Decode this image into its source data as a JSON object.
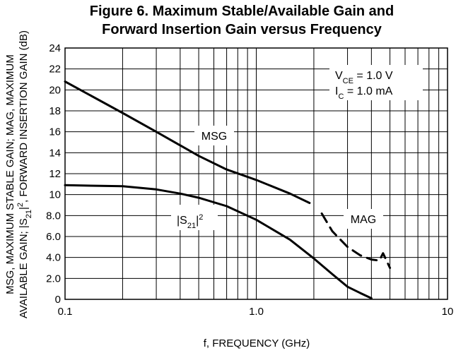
{
  "chart_data": {
    "type": "line",
    "title": "Figure 6. Maximum Stable/Available Gain and Forward Insertion Gain versus Frequency",
    "title_lines": [
      "Figure 6. Maximum Stable/Available Gain and",
      "Forward Insertion Gain versus Frequency"
    ],
    "xlabel": "f, FREQUENCY (GHz)",
    "ylabel_lines": [
      "MSG, MAXIMUM STABLE GAIN; MAG, MAXIMUM",
      "AVAILABLE GAIN; |S",
      "21",
      "|",
      "2",
      ", FORWARD INSERTION GAIN (dB)"
    ],
    "x_scale": "log",
    "xlim": [
      0.1,
      10
    ],
    "ylim": [
      0,
      24
    ],
    "grid": true,
    "x_ticks": [
      {
        "value": 0.1,
        "label": "0.1"
      },
      {
        "value": 1,
        "label": "1.0"
      },
      {
        "value": 10,
        "label": "10"
      }
    ],
    "y_ticks": [
      {
        "value": 0,
        "label": "0"
      },
      {
        "value": 2,
        "label": "2.0"
      },
      {
        "value": 4,
        "label": "4.0"
      },
      {
        "value": 6,
        "label": "6.0"
      },
      {
        "value": 8,
        "label": "8.0"
      },
      {
        "value": 10,
        "label": "10"
      },
      {
        "value": 12,
        "label": "12"
      },
      {
        "value": 14,
        "label": "14"
      },
      {
        "value": 16,
        "label": "16"
      },
      {
        "value": 18,
        "label": "18"
      },
      {
        "value": 20,
        "label": "20"
      },
      {
        "value": 22,
        "label": "22"
      },
      {
        "value": 24,
        "label": "24"
      }
    ],
    "series": [
      {
        "name": "MSG",
        "style": "solid",
        "x": [
          0.1,
          0.2,
          0.3,
          0.5,
          0.7,
          1.0,
          1.5,
          1.9
        ],
        "y": [
          20.8,
          17.8,
          16.0,
          13.7,
          12.4,
          11.4,
          10.1,
          9.2
        ]
      },
      {
        "name": "MAG",
        "style": "dashed",
        "x": [
          2.2,
          2.5,
          3.0,
          3.5,
          4.0,
          4.4,
          4.6,
          5.0
        ],
        "y": [
          8.2,
          6.5,
          5.0,
          4.2,
          3.8,
          3.7,
          4.4,
          3.0
        ]
      },
      {
        "name": "|S21|²",
        "style": "solid",
        "x": [
          0.1,
          0.2,
          0.3,
          0.4,
          0.5,
          0.7,
          1.0,
          1.5,
          2.0,
          2.5,
          3.0,
          3.5,
          4.0
        ],
        "y": [
          10.9,
          10.8,
          10.5,
          10.1,
          9.7,
          8.9,
          7.6,
          5.7,
          3.9,
          2.4,
          1.2,
          0.6,
          0.1
        ]
      }
    ],
    "annotations": {
      "msg_label": "MSG",
      "mag_label": "MAG",
      "s21_label": {
        "pre": "|S",
        "sub": "21",
        "post": "|",
        "sup": "2"
      },
      "vce": {
        "pre": "V",
        "sub": "CE",
        "post": " = 1.0 V"
      },
      "ic": {
        "pre": "I",
        "sub": "C",
        "post": " = 1.0 mA"
      }
    }
  }
}
